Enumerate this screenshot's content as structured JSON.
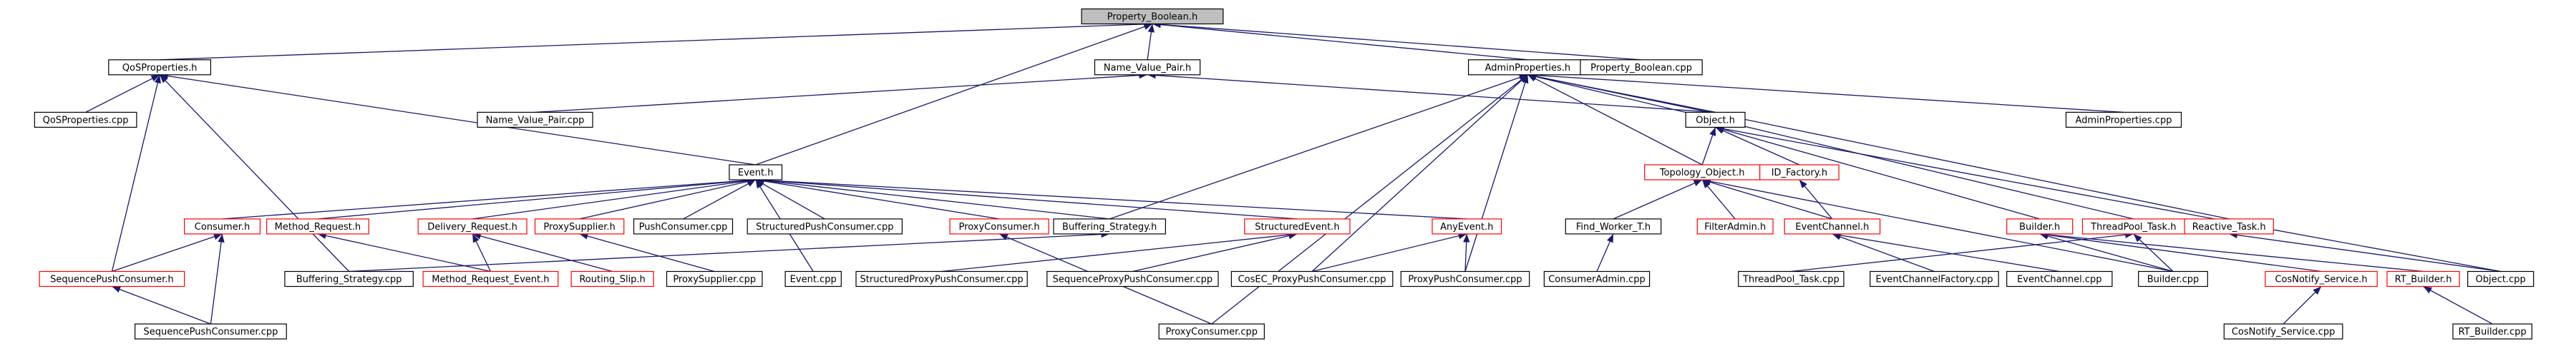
{
  "nodes": [
    "Property_Boolean.h",
    "QoSProperties.h",
    "Name_Value_Pair.h",
    "AdminProperties.h",
    "Property_Boolean.cpp",
    "QoSProperties.cpp",
    "Name_Value_Pair.cpp",
    "Object.h",
    "AdminProperties.cpp",
    "Event.h",
    "Topology_Object.h",
    "ID_Factory.h",
    "Consumer.h",
    "Method_Request.h",
    "Delivery_Request.h",
    "ProxySupplier.h",
    "PushConsumer.cpp",
    "StructuredPushConsumer.cpp",
    "ProxyConsumer.h",
    "Buffering_Strategy.h",
    "StructuredEvent.h",
    "AnyEvent.h",
    "Find_Worker_T.h",
    "FilterAdmin.h",
    "EventChannel.h",
    "Builder.h",
    "ThreadPool_Task.h",
    "Reactive_Task.h",
    "SequencePushConsumer.h",
    "Buffering_Strategy.cpp",
    "Method_Request_Event.h",
    "Routing_Slip.h",
    "ProxySupplier.cpp",
    "Event.cpp",
    "StructuredProxyPushConsumer.cpp",
    "SequenceProxyPushConsumer.cpp",
    "CosEC_ProxyPushConsumer.cpp",
    "ProxyPushConsumer.cpp",
    "ConsumerAdmin.cpp",
    "ThreadPool_Task.cpp",
    "EventChannelFactory.cpp",
    "EventChannel.cpp",
    "Builder.cpp",
    "CosNotify_Service.h",
    "RT_Builder.h",
    "Object.cpp",
    "SequencePushConsumer.cpp",
    "ProxyConsumer.cpp",
    "CosNotify_Service.cpp",
    "RT_Builder.cpp"
  ]
}
